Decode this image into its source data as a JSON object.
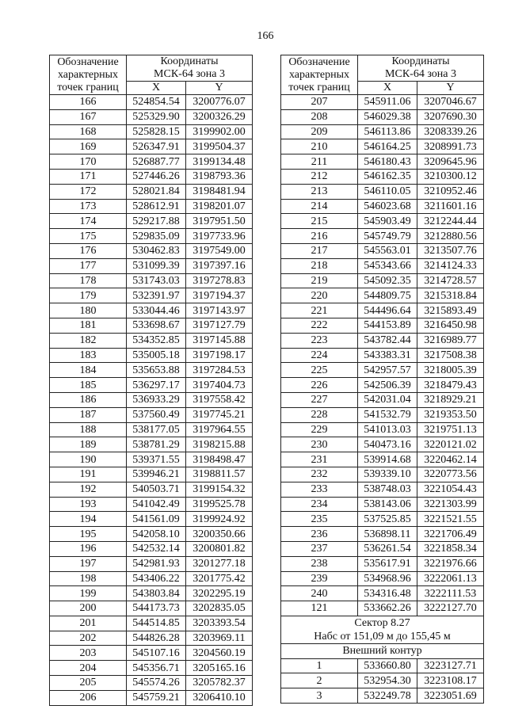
{
  "page_number": "166",
  "header": {
    "col_point": [
      "Обозначение",
      "характерных",
      "точек границ"
    ],
    "coords_title": [
      "Координаты",
      "МСК-64 зона 3"
    ],
    "x": "X",
    "y": "Y"
  },
  "left_table": {
    "rows": [
      [
        "166",
        "524854.54",
        "3200776.07"
      ],
      [
        "167",
        "525329.90",
        "3200326.29"
      ],
      [
        "168",
        "525828.15",
        "3199902.00"
      ],
      [
        "169",
        "526347.91",
        "3199504.37"
      ],
      [
        "170",
        "526887.77",
        "3199134.48"
      ],
      [
        "171",
        "527446.26",
        "3198793.36"
      ],
      [
        "172",
        "528021.84",
        "3198481.94"
      ],
      [
        "173",
        "528612.91",
        "3198201.07"
      ],
      [
        "174",
        "529217.88",
        "3197951.50"
      ],
      [
        "175",
        "529835.09",
        "3197733.96"
      ],
      [
        "176",
        "530462.83",
        "3197549.00"
      ],
      [
        "177",
        "531099.39",
        "3197397.16"
      ],
      [
        "178",
        "531743.03",
        "3197278.83"
      ],
      [
        "179",
        "532391.97",
        "3197194.37"
      ],
      [
        "180",
        "533044.46",
        "3197143.97"
      ],
      [
        "181",
        "533698.67",
        "3197127.79"
      ],
      [
        "182",
        "534352.85",
        "3197145.88"
      ],
      [
        "183",
        "535005.18",
        "3197198.17"
      ],
      [
        "184",
        "535653.88",
        "3197284.53"
      ],
      [
        "185",
        "536297.17",
        "3197404.73"
      ],
      [
        "186",
        "536933.29",
        "3197558.42"
      ],
      [
        "187",
        "537560.49",
        "3197745.21"
      ],
      [
        "188",
        "538177.05",
        "3197964.55"
      ],
      [
        "189",
        "538781.29",
        "3198215.88"
      ],
      [
        "190",
        "539371.55",
        "3198498.47"
      ],
      [
        "191",
        "539946.21",
        "3198811.57"
      ],
      [
        "192",
        "540503.71",
        "3199154.32"
      ],
      [
        "193",
        "541042.49",
        "3199525.78"
      ],
      [
        "194",
        "541561.09",
        "3199924.92"
      ],
      [
        "195",
        "542058.10",
        "3200350.66"
      ],
      [
        "196",
        "542532.14",
        "3200801.82"
      ],
      [
        "197",
        "542981.93",
        "3201277.18"
      ],
      [
        "198",
        "543406.22",
        "3201775.42"
      ],
      [
        "199",
        "543803.84",
        "3202295.19"
      ],
      [
        "200",
        "544173.73",
        "3202835.05"
      ],
      [
        "201",
        "544514.85",
        "3203393.54"
      ],
      [
        "202",
        "544826.28",
        "3203969.11"
      ],
      [
        "203",
        "545107.16",
        "3204560.19"
      ],
      [
        "204",
        "545356.71",
        "3205165.16"
      ],
      [
        "205",
        "545574.26",
        "3205782.37"
      ],
      [
        "206",
        "545759.21",
        "3206410.10"
      ]
    ]
  },
  "right_table": {
    "rows": [
      [
        "207",
        "545911.06",
        "3207046.67"
      ],
      [
        "208",
        "546029.38",
        "3207690.30"
      ],
      [
        "209",
        "546113.86",
        "3208339.26"
      ],
      [
        "210",
        "546164.25",
        "3208991.73"
      ],
      [
        "211",
        "546180.43",
        "3209645.96"
      ],
      [
        "212",
        "546162.35",
        "3210300.12"
      ],
      [
        "213",
        "546110.05",
        "3210952.46"
      ],
      [
        "214",
        "546023.68",
        "3211601.16"
      ],
      [
        "215",
        "545903.49",
        "3212244.44"
      ],
      [
        "216",
        "545749.79",
        "3212880.56"
      ],
      [
        "217",
        "545563.01",
        "3213507.76"
      ],
      [
        "218",
        "545343.66",
        "3214124.33"
      ],
      [
        "219",
        "545092.35",
        "3214728.57"
      ],
      [
        "220",
        "544809.75",
        "3215318.84"
      ],
      [
        "221",
        "544496.64",
        "3215893.49"
      ],
      [
        "222",
        "544153.89",
        "3216450.98"
      ],
      [
        "223",
        "543782.44",
        "3216989.77"
      ],
      [
        "224",
        "543383.31",
        "3217508.38"
      ],
      [
        "225",
        "542957.57",
        "3218005.39"
      ],
      [
        "226",
        "542506.39",
        "3218479.43"
      ],
      [
        "227",
        "542031.04",
        "3218929.21"
      ],
      [
        "228",
        "541532.79",
        "3219353.50"
      ],
      [
        "229",
        "541013.03",
        "3219751.13"
      ],
      [
        "230",
        "540473.16",
        "3220121.02"
      ],
      [
        "231",
        "539914.68",
        "3220462.14"
      ],
      [
        "232",
        "539339.10",
        "3220773.56"
      ],
      [
        "233",
        "538748.03",
        "3221054.43"
      ],
      [
        "234",
        "538143.06",
        "3221303.99"
      ],
      [
        "235",
        "537525.85",
        "3221521.55"
      ],
      [
        "236",
        "536898.11",
        "3221706.49"
      ],
      [
        "237",
        "536261.54",
        "3221858.34"
      ],
      [
        "238",
        "535617.91",
        "3221976.66"
      ],
      [
        "239",
        "534968.96",
        "3222061.13"
      ],
      [
        "240",
        "534316.48",
        "3222111.53"
      ],
      [
        "121",
        "533662.26",
        "3222127.70"
      ]
    ],
    "sector_title": "Сектор 8.27",
    "sector_height": "Набс от 151,09 м до 155,45 м",
    "contour_label": "Внешний контур",
    "contour_rows": [
      [
        "1",
        "533660.80",
        "3223127.71"
      ],
      [
        "2",
        "532954.30",
        "3223108.17"
      ],
      [
        "3",
        "532249.78",
        "3223051.69"
      ]
    ]
  }
}
